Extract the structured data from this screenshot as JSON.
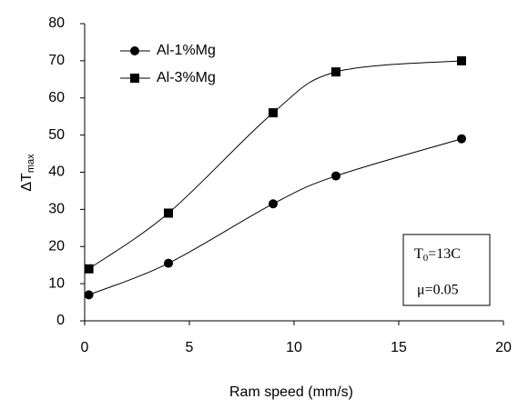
{
  "chart_data": {
    "type": "line",
    "xlabel": "Ram speed (mm/s)",
    "ylabel": "ΔT",
    "ylabel_sub": "max",
    "x": [
      0.2,
      4,
      9,
      12,
      18
    ],
    "series": [
      {
        "name": "Al-1%Mg",
        "color": "#000000",
        "marker": "circle",
        "values": [
          7,
          15.5,
          31.5,
          39,
          49
        ]
      },
      {
        "name": "Al-3%Mg",
        "color": "#000000",
        "marker": "square",
        "values": [
          14,
          29,
          56,
          67,
          70
        ]
      }
    ],
    "xlim": [
      0,
      20
    ],
    "xticks": [
      0,
      5,
      10,
      15,
      20
    ],
    "ylim": [
      0,
      80
    ],
    "yticks": [
      0,
      10,
      20,
      30,
      40,
      50,
      60,
      70,
      80
    ],
    "grid": false,
    "legend": "upper left",
    "smooth": true,
    "annotation": {
      "t": "T",
      "t_sub": "0",
      "t_rest": "=13C",
      "mu": "μ=0.05"
    }
  }
}
